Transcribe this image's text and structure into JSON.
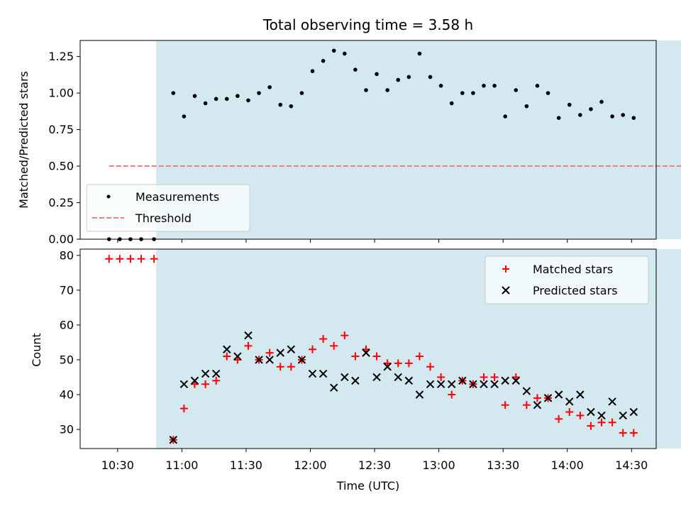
{
  "chart_data": [
    {
      "type": "scatter",
      "title": "Total observing time = 3.58 h",
      "xlabel": "",
      "ylabel": "Matched/Predicted stars",
      "ylim": [
        0,
        1.36
      ],
      "yticks": [
        0.0,
        0.25,
        0.5,
        0.75,
        1.0,
        1.25
      ],
      "ytick_labels": [
        "0.00",
        "0.25",
        "0.50",
        "0.75",
        "1.00",
        "1.25"
      ],
      "shaded_span_minutes": [
        648,
        1105
      ],
      "shade_color": "#d3e9ef",
      "threshold": {
        "value": 0.5,
        "x_start_minutes": 626,
        "x_end_minutes": 1105,
        "color": "#f08080"
      },
      "legend": {
        "location": "lower-left",
        "entries": [
          "Measurements",
          "Threshold"
        ]
      },
      "series": [
        {
          "name": "Measurements",
          "marker": "dot",
          "color": "#000000",
          "points": [
            [
              626,
              0.0
            ],
            [
              631,
              0.0
            ],
            [
              636,
              0.0
            ],
            [
              641,
              0.0
            ],
            [
              647,
              0.0
            ],
            [
              656,
              1.0
            ],
            [
              661,
              0.84
            ],
            [
              666,
              0.98
            ],
            [
              671,
              0.93
            ],
            [
              676,
              0.96
            ],
            [
              681,
              0.96
            ],
            [
              686,
              0.98
            ],
            [
              691,
              0.95
            ],
            [
              696,
              1.0
            ],
            [
              701,
              1.04
            ],
            [
              706,
              0.92
            ],
            [
              711,
              0.91
            ],
            [
              716,
              1.0
            ],
            [
              721,
              1.15
            ],
            [
              726,
              1.22
            ],
            [
              731,
              1.29
            ],
            [
              736,
              1.27
            ],
            [
              741,
              1.16
            ],
            [
              746,
              1.02
            ],
            [
              751,
              1.13
            ],
            [
              756,
              1.02
            ],
            [
              761,
              1.09
            ],
            [
              766,
              1.11
            ],
            [
              771,
              1.27
            ],
            [
              776,
              1.11
            ],
            [
              781,
              1.05
            ],
            [
              786,
              0.93
            ],
            [
              791,
              1.0
            ],
            [
              796,
              1.0
            ],
            [
              801,
              1.05
            ],
            [
              806,
              1.05
            ],
            [
              811,
              0.84
            ],
            [
              816,
              1.02
            ],
            [
              821,
              0.91
            ],
            [
              826,
              1.05
            ],
            [
              831,
              1.0
            ],
            [
              836,
              0.83
            ],
            [
              841,
              0.92
            ],
            [
              846,
              0.85
            ],
            [
              851,
              0.89
            ],
            [
              856,
              0.94
            ],
            [
              861,
              0.84
            ],
            [
              866,
              0.85
            ],
            [
              871,
              0.83
            ]
          ]
        }
      ]
    },
    {
      "type": "scatter",
      "title": "",
      "xlabel": "Time (UTC)",
      "ylabel": "Count",
      "ylim": [
        24.5,
        81.8
      ],
      "yticks": [
        30,
        40,
        50,
        60,
        70,
        80
      ],
      "ytick_labels": [
        "30",
        "40",
        "50",
        "60",
        "70",
        "80"
      ],
      "x_axis": {
        "tick_minutes": [
          630,
          660,
          690,
          720,
          750,
          780,
          810,
          840,
          870
        ],
        "tick_labels": [
          "10:30",
          "11:00",
          "11:30",
          "12:00",
          "12:30",
          "13:00",
          "13:30",
          "14:00",
          "14:30"
        ]
      },
      "legend": {
        "location": "top-right",
        "entries": [
          "Matched stars",
          "Predicted stars"
        ]
      },
      "series": [
        {
          "name": "Matched stars",
          "marker": "plus",
          "color": "#ff0000",
          "points": [
            [
              626,
              79
            ],
            [
              631,
              79
            ],
            [
              636,
              79
            ],
            [
              641,
              79
            ],
            [
              647,
              79
            ],
            [
              656,
              27
            ],
            [
              661,
              36
            ],
            [
              666,
              43
            ],
            [
              671,
              43
            ],
            [
              676,
              44
            ],
            [
              681,
              51
            ],
            [
              686,
              50
            ],
            [
              691,
              54
            ],
            [
              696,
              50
            ],
            [
              701,
              52
            ],
            [
              706,
              48
            ],
            [
              711,
              48
            ],
            [
              716,
              50
            ],
            [
              721,
              53
            ],
            [
              726,
              56
            ],
            [
              731,
              54
            ],
            [
              736,
              57
            ],
            [
              741,
              51
            ],
            [
              746,
              53
            ],
            [
              751,
              51
            ],
            [
              756,
              49
            ],
            [
              761,
              49
            ],
            [
              766,
              49
            ],
            [
              771,
              51
            ],
            [
              776,
              48
            ],
            [
              781,
              45
            ],
            [
              786,
              40
            ],
            [
              791,
              44
            ],
            [
              796,
              43
            ],
            [
              801,
              45
            ],
            [
              806,
              45
            ],
            [
              811,
              37
            ],
            [
              816,
              45
            ],
            [
              821,
              37
            ],
            [
              826,
              39
            ],
            [
              831,
              39
            ],
            [
              836,
              33
            ],
            [
              841,
              35
            ],
            [
              846,
              34
            ],
            [
              851,
              31
            ],
            [
              856,
              32
            ],
            [
              861,
              32
            ],
            [
              866,
              29
            ],
            [
              871,
              29
            ]
          ]
        },
        {
          "name": "Predicted stars",
          "marker": "x",
          "color": "#000000",
          "points": [
            [
              656,
              27
            ],
            [
              661,
              43
            ],
            [
              666,
              44
            ],
            [
              671,
              46
            ],
            [
              676,
              46
            ],
            [
              681,
              53
            ],
            [
              686,
              51
            ],
            [
              691,
              57
            ],
            [
              696,
              50
            ],
            [
              701,
              50
            ],
            [
              706,
              52
            ],
            [
              711,
              53
            ],
            [
              716,
              50
            ],
            [
              721,
              46
            ],
            [
              726,
              46
            ],
            [
              731,
              42
            ],
            [
              736,
              45
            ],
            [
              741,
              44
            ],
            [
              746,
              52
            ],
            [
              751,
              45
            ],
            [
              756,
              48
            ],
            [
              761,
              45
            ],
            [
              766,
              44
            ],
            [
              771,
              40
            ],
            [
              776,
              43
            ],
            [
              781,
              43
            ],
            [
              786,
              43
            ],
            [
              791,
              44
            ],
            [
              796,
              43
            ],
            [
              801,
              43
            ],
            [
              806,
              43
            ],
            [
              811,
              44
            ],
            [
              816,
              44
            ],
            [
              821,
              41
            ],
            [
              826,
              37
            ],
            [
              831,
              39
            ],
            [
              836,
              40
            ],
            [
              841,
              38
            ],
            [
              846,
              40
            ],
            [
              851,
              35
            ],
            [
              856,
              34
            ],
            [
              861,
              38
            ],
            [
              866,
              34
            ],
            [
              871,
              35
            ]
          ]
        }
      ]
    }
  ]
}
